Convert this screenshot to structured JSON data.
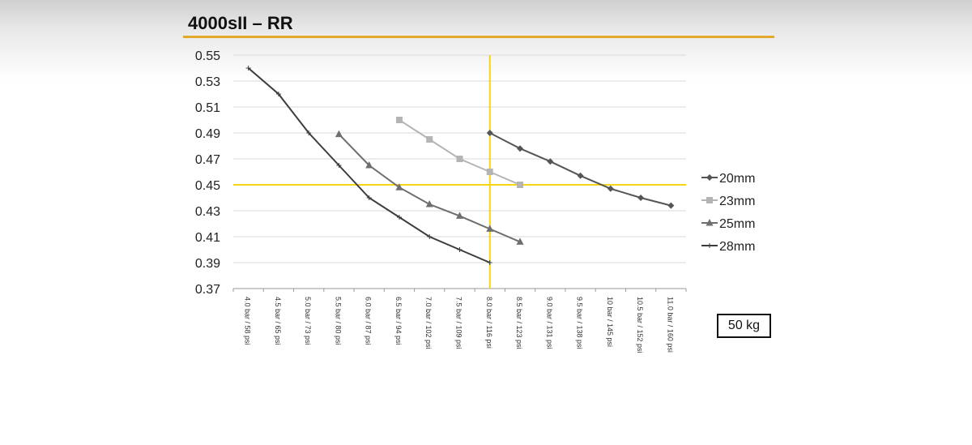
{
  "title": "4000sII – RR",
  "weight_label": "50 kg",
  "chart_data": {
    "type": "line",
    "title": "4000sII – RR",
    "xlabel": "",
    "ylabel": "",
    "categories": [
      "4.0 bar / 58 psi",
      "4.5 bar / 65 psi",
      "5.0 bar / 73 psi",
      "5.5 bar / 80 psi",
      "6.0 bar / 87 psi",
      "6.5 bar / 94 psi",
      "7.0 bar / 102 psi",
      "7.5 bar / 109 psi",
      "8.0 bar / 116 psi",
      "8.5 bar / 123 psi",
      "9.0 bar / 131 psi",
      "9.5 bar / 138 psi",
      "10 bar / 145 psi",
      "10.5 bar / 152 psi",
      "11.0 bar / 160 psi"
    ],
    "ylim": [
      0.37,
      0.55
    ],
    "yticks": [
      "0.55",
      "0.53",
      "0.51",
      "0.49",
      "0.47",
      "0.45",
      "0.43",
      "0.41",
      "0.39",
      "0.37"
    ],
    "grid": true,
    "legend_position": "right",
    "series": [
      {
        "name": "20mm",
        "marker": "diamond",
        "color": "#555555",
        "values": [
          null,
          null,
          null,
          null,
          null,
          null,
          null,
          null,
          0.49,
          0.478,
          0.468,
          0.457,
          0.447,
          0.44,
          0.434
        ]
      },
      {
        "name": "23mm",
        "marker": "square",
        "color": "#b4b4b4",
        "values": [
          null,
          null,
          null,
          null,
          null,
          0.5,
          0.485,
          0.47,
          0.46,
          0.45,
          null,
          null,
          null,
          null,
          null
        ]
      },
      {
        "name": "25mm",
        "marker": "triangle",
        "color": "#6e6e6e",
        "values": [
          null,
          null,
          null,
          0.489,
          0.465,
          0.448,
          0.435,
          0.426,
          0.416,
          0.406,
          null,
          null,
          null,
          null,
          null
        ]
      },
      {
        "name": "28mm",
        "marker": "cross",
        "color": "#3c3c3c",
        "values": [
          0.54,
          0.52,
          0.49,
          0.465,
          0.44,
          0.425,
          0.41,
          0.4,
          0.39,
          null,
          null,
          null,
          null,
          null,
          null
        ]
      }
    ],
    "reference_lines": {
      "color": "#f5d515",
      "horizontal_y": 0.45,
      "vertical_category": "8.0 bar / 116 psi"
    }
  }
}
